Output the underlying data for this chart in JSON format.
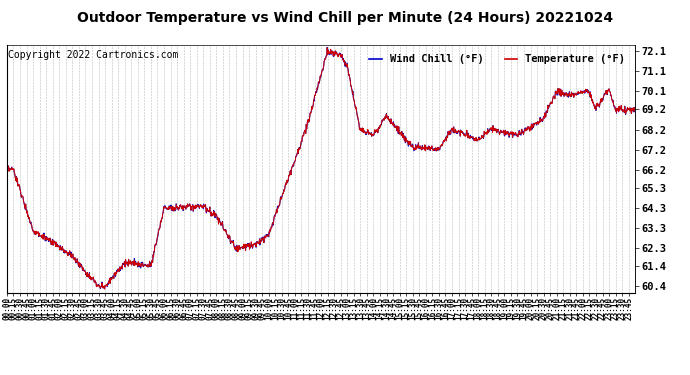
{
  "title": "Outdoor Temperature vs Wind Chill per Minute (24 Hours) 20221024",
  "copyright": "Copyright 2022 Cartronics.com",
  "ylabel_ticks": [
    60.4,
    61.4,
    62.3,
    63.3,
    64.3,
    65.3,
    66.2,
    67.2,
    68.2,
    69.2,
    70.1,
    71.1,
    72.1
  ],
  "ylim": [
    60.1,
    72.4
  ],
  "background_color": "#ffffff",
  "grid_color": "#bbbbbb",
  "line_color_temp": "#cc0000",
  "line_color_wc": "#0000cc",
  "title_fontsize": 10,
  "copyright_fontsize": 7,
  "legend_wc_color": "#0000cc",
  "legend_temp_color": "#cc0000"
}
